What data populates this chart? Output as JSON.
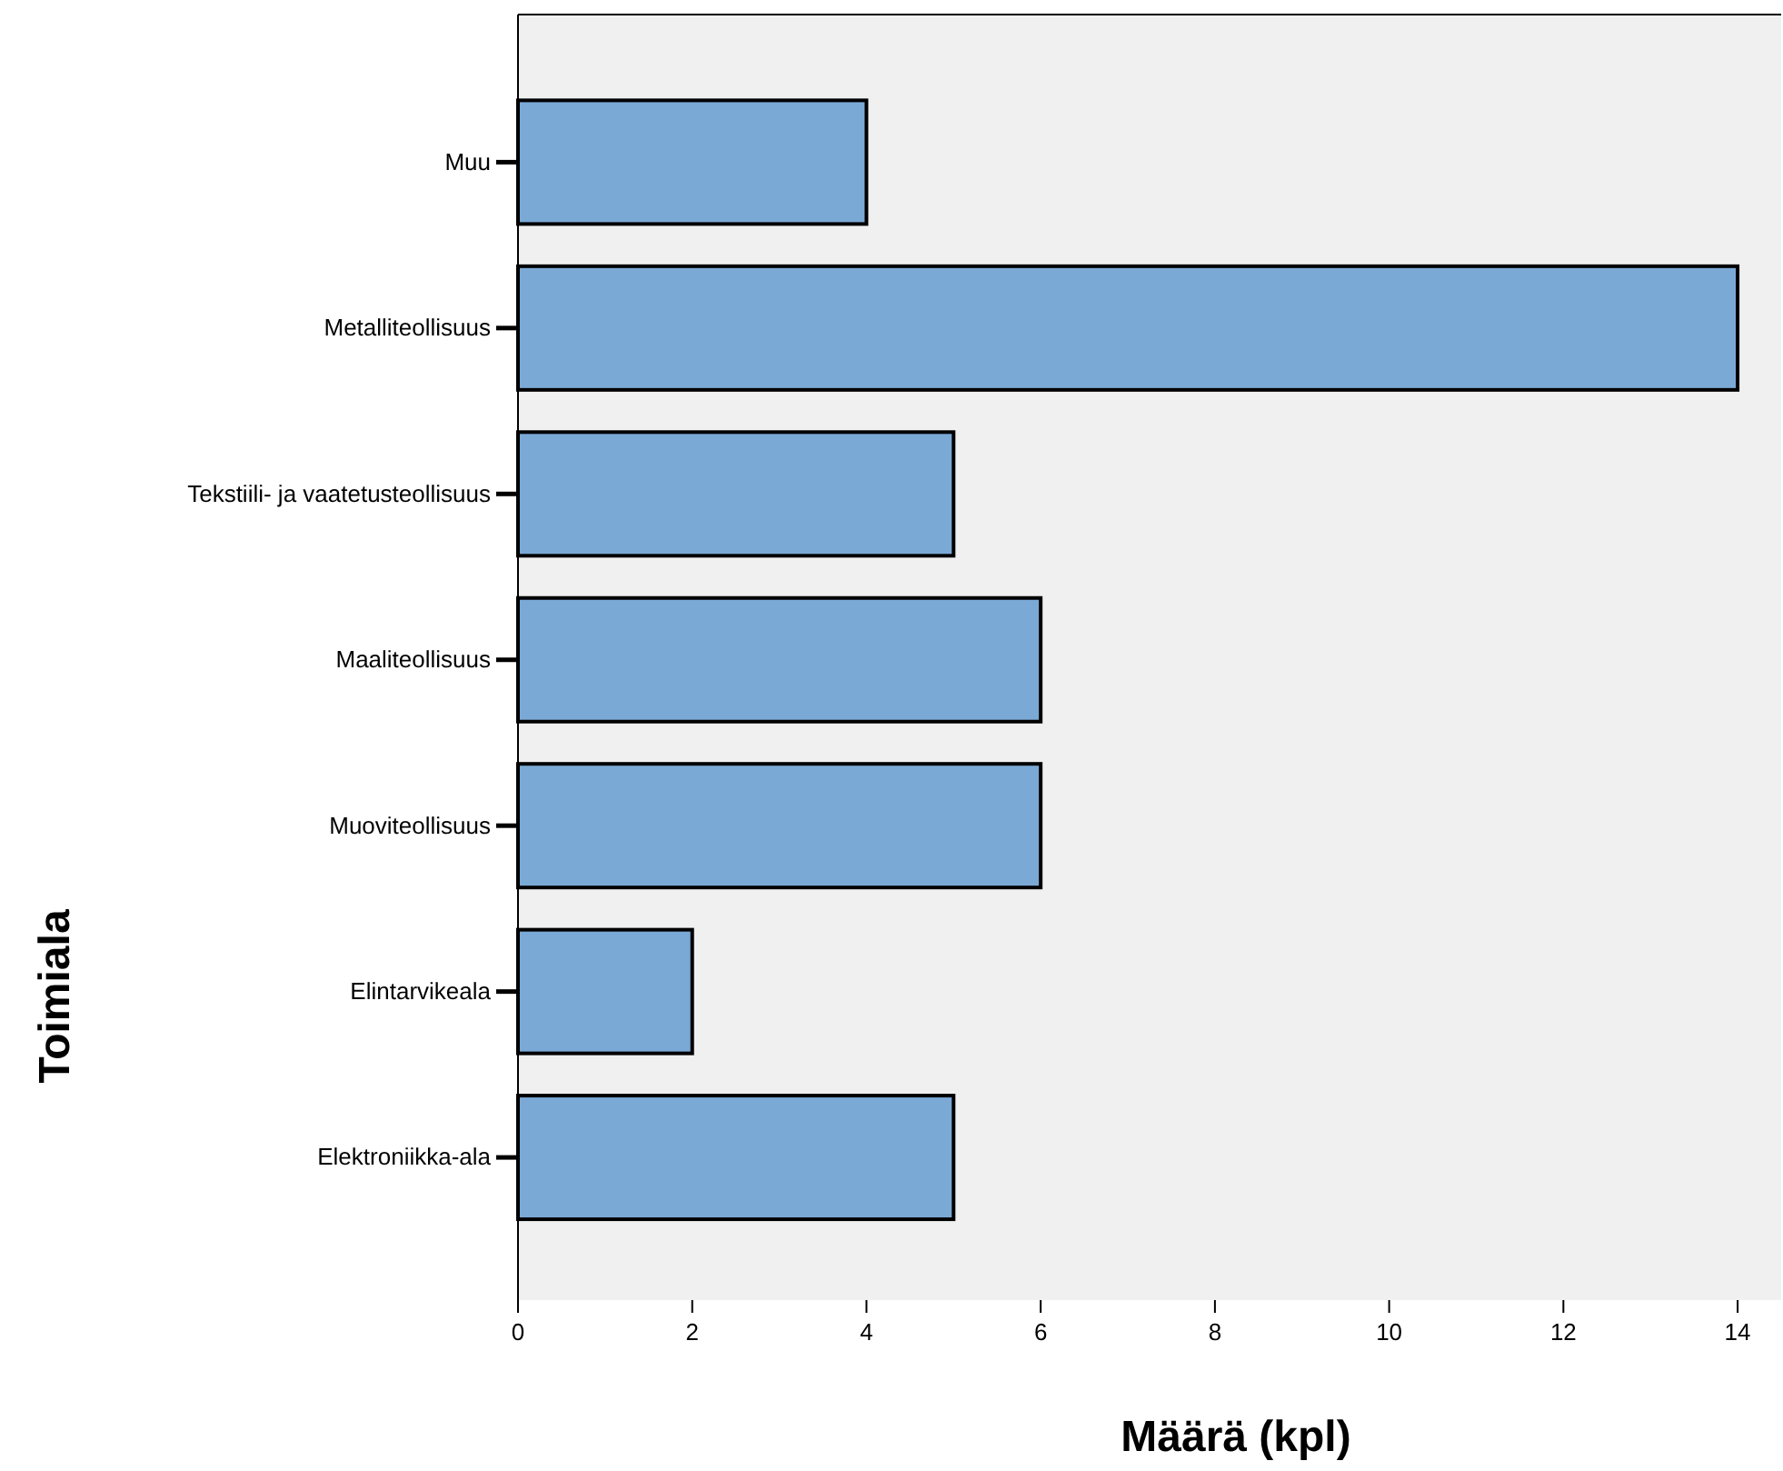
{
  "chart_data": {
    "type": "bar",
    "orientation": "horizontal",
    "xlabel": "Määrä (kpl)",
    "ylabel": "Toimiala",
    "categories": [
      "Muu",
      "Metalliteollisuus",
      "Tekstiili- ja vaatetusteollisuus",
      "Maaliteollisuus",
      "Muoviteollisuus",
      "Elintarvikeala",
      "Elektroniikka-ala"
    ],
    "values": [
      4,
      14,
      5,
      6,
      6,
      2,
      5
    ],
    "color": "#7ba9d6",
    "xlim": [
      0,
      14.5
    ],
    "xticks": [
      0,
      2,
      4,
      6,
      8,
      10,
      12,
      14
    ],
    "grid": false
  }
}
